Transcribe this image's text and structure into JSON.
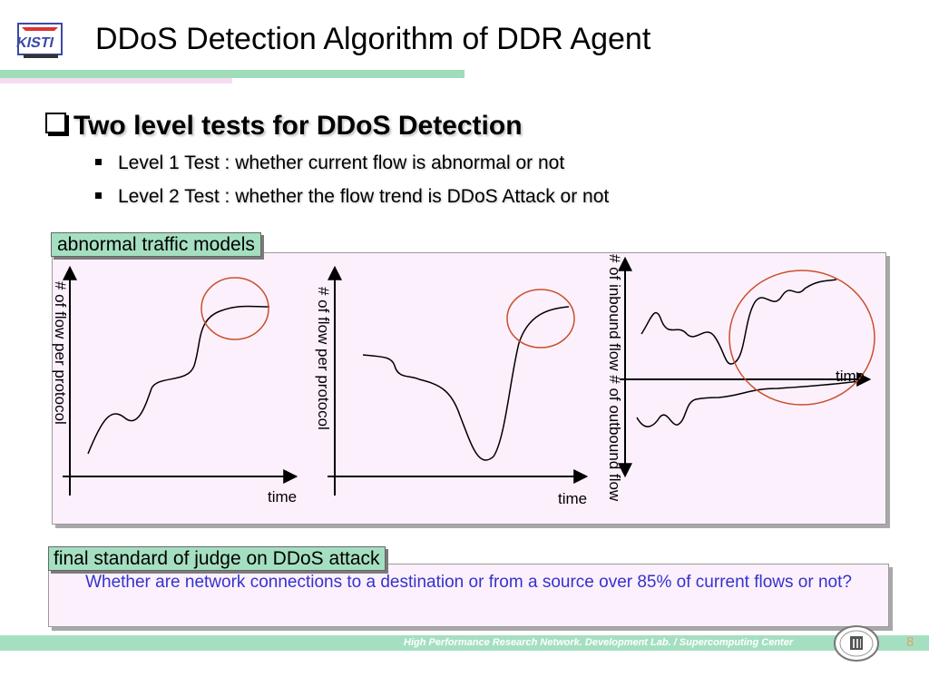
{
  "header": {
    "title": "DDoS Detection Algorithm of DDR Agent"
  },
  "bullets": {
    "heading": "Two level tests for DDoS Detection",
    "items": [
      "Level 1 Test : whether current flow is abnormal or not",
      "Level 2 Test : whether the flow trend is DDoS Attack or not"
    ]
  },
  "models": {
    "label": "abnormal traffic models",
    "charts": [
      {
        "ylabel": "# of flow per protocol",
        "xlabel": "time"
      },
      {
        "ylabel": "# of flow per protocol",
        "xlabel": "time"
      },
      {
        "ylabel": "# of inbound flow  # of outbound flow",
        "xlabel": "time"
      }
    ]
  },
  "judge": {
    "label": "final standard of judge on DDoS attack",
    "text": "Whether are network connections to a destination or from a source over 85% of current flows or not?"
  },
  "footer": {
    "text": "High Performance Research Network. Development Lab. / Supercomputing Center",
    "page": "8"
  },
  "colors": {
    "accent_green": "#a5dfc1",
    "panel_pink": "#fdf0fd",
    "judge_text": "#3333cc",
    "circle": "#c8502a"
  }
}
